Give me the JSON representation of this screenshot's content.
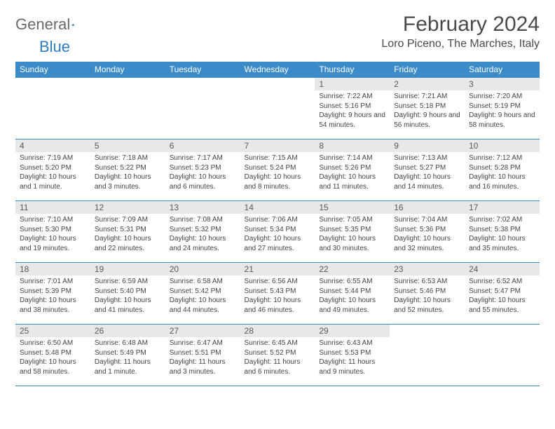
{
  "logo": {
    "text1": "General",
    "text2": "Blue"
  },
  "title": "February 2024",
  "location": "Loro Piceno, The Marches, Italy",
  "dow": [
    "Sunday",
    "Monday",
    "Tuesday",
    "Wednesday",
    "Thursday",
    "Friday",
    "Saturday"
  ],
  "colors": {
    "header_bg": "#3b8bc8",
    "daynum_bg": "#e8e8e8",
    "border": "#3b8bc8",
    "text": "#444444"
  },
  "weeks": [
    [
      null,
      null,
      null,
      null,
      {
        "n": "1",
        "sr": "7:22 AM",
        "ss": "5:16 PM",
        "dl": "9 hours and 54 minutes."
      },
      {
        "n": "2",
        "sr": "7:21 AM",
        "ss": "5:18 PM",
        "dl": "9 hours and 56 minutes."
      },
      {
        "n": "3",
        "sr": "7:20 AM",
        "ss": "5:19 PM",
        "dl": "9 hours and 58 minutes."
      }
    ],
    [
      {
        "n": "4",
        "sr": "7:19 AM",
        "ss": "5:20 PM",
        "dl": "10 hours and 1 minute."
      },
      {
        "n": "5",
        "sr": "7:18 AM",
        "ss": "5:22 PM",
        "dl": "10 hours and 3 minutes."
      },
      {
        "n": "6",
        "sr": "7:17 AM",
        "ss": "5:23 PM",
        "dl": "10 hours and 6 minutes."
      },
      {
        "n": "7",
        "sr": "7:15 AM",
        "ss": "5:24 PM",
        "dl": "10 hours and 8 minutes."
      },
      {
        "n": "8",
        "sr": "7:14 AM",
        "ss": "5:26 PM",
        "dl": "10 hours and 11 minutes."
      },
      {
        "n": "9",
        "sr": "7:13 AM",
        "ss": "5:27 PM",
        "dl": "10 hours and 14 minutes."
      },
      {
        "n": "10",
        "sr": "7:12 AM",
        "ss": "5:28 PM",
        "dl": "10 hours and 16 minutes."
      }
    ],
    [
      {
        "n": "11",
        "sr": "7:10 AM",
        "ss": "5:30 PM",
        "dl": "10 hours and 19 minutes."
      },
      {
        "n": "12",
        "sr": "7:09 AM",
        "ss": "5:31 PM",
        "dl": "10 hours and 22 minutes."
      },
      {
        "n": "13",
        "sr": "7:08 AM",
        "ss": "5:32 PM",
        "dl": "10 hours and 24 minutes."
      },
      {
        "n": "14",
        "sr": "7:06 AM",
        "ss": "5:34 PM",
        "dl": "10 hours and 27 minutes."
      },
      {
        "n": "15",
        "sr": "7:05 AM",
        "ss": "5:35 PM",
        "dl": "10 hours and 30 minutes."
      },
      {
        "n": "16",
        "sr": "7:04 AM",
        "ss": "5:36 PM",
        "dl": "10 hours and 32 minutes."
      },
      {
        "n": "17",
        "sr": "7:02 AM",
        "ss": "5:38 PM",
        "dl": "10 hours and 35 minutes."
      }
    ],
    [
      {
        "n": "18",
        "sr": "7:01 AM",
        "ss": "5:39 PM",
        "dl": "10 hours and 38 minutes."
      },
      {
        "n": "19",
        "sr": "6:59 AM",
        "ss": "5:40 PM",
        "dl": "10 hours and 41 minutes."
      },
      {
        "n": "20",
        "sr": "6:58 AM",
        "ss": "5:42 PM",
        "dl": "10 hours and 44 minutes."
      },
      {
        "n": "21",
        "sr": "6:56 AM",
        "ss": "5:43 PM",
        "dl": "10 hours and 46 minutes."
      },
      {
        "n": "22",
        "sr": "6:55 AM",
        "ss": "5:44 PM",
        "dl": "10 hours and 49 minutes."
      },
      {
        "n": "23",
        "sr": "6:53 AM",
        "ss": "5:46 PM",
        "dl": "10 hours and 52 minutes."
      },
      {
        "n": "24",
        "sr": "6:52 AM",
        "ss": "5:47 PM",
        "dl": "10 hours and 55 minutes."
      }
    ],
    [
      {
        "n": "25",
        "sr": "6:50 AM",
        "ss": "5:48 PM",
        "dl": "10 hours and 58 minutes."
      },
      {
        "n": "26",
        "sr": "6:48 AM",
        "ss": "5:49 PM",
        "dl": "11 hours and 1 minute."
      },
      {
        "n": "27",
        "sr": "6:47 AM",
        "ss": "5:51 PM",
        "dl": "11 hours and 3 minutes."
      },
      {
        "n": "28",
        "sr": "6:45 AM",
        "ss": "5:52 PM",
        "dl": "11 hours and 6 minutes."
      },
      {
        "n": "29",
        "sr": "6:43 AM",
        "ss": "5:53 PM",
        "dl": "11 hours and 9 minutes."
      },
      null,
      null
    ]
  ],
  "labels": {
    "sunrise": "Sunrise: ",
    "sunset": "Sunset: ",
    "daylight": "Daylight: "
  }
}
